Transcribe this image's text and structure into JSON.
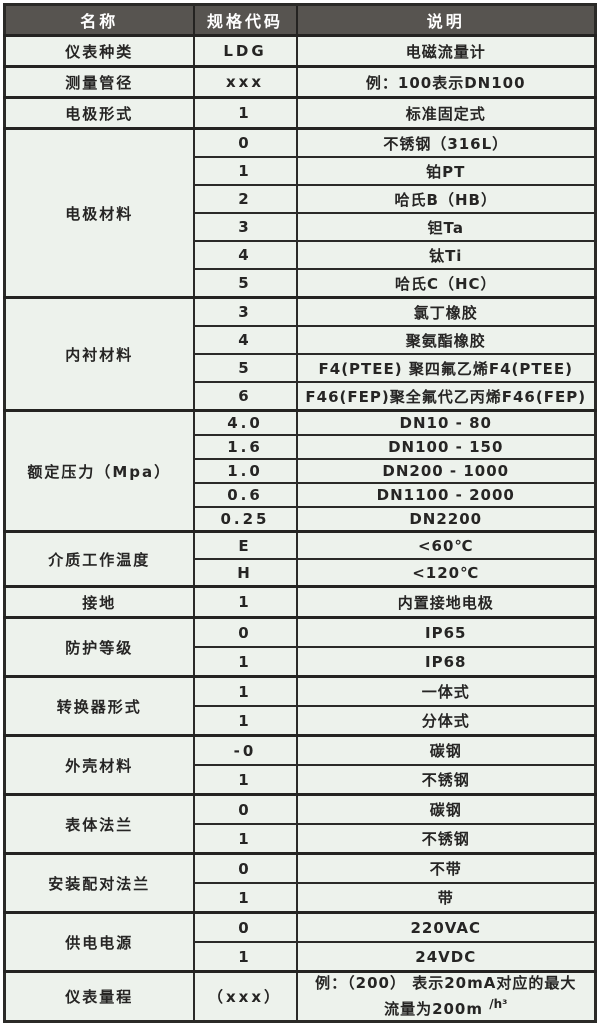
{
  "table": {
    "header": {
      "columns": [
        "名称",
        "规格代码",
        "说明"
      ],
      "bg_color": "#575450",
      "text_color": "#ffffff"
    },
    "colors": {
      "body_bg": "#edf2ec",
      "border": "#2b2a28",
      "text": "#262524"
    },
    "groups": [
      {
        "name": "仪表种类",
        "rows": [
          {
            "code": "LDG",
            "desc": "电磁流量计"
          }
        ]
      },
      {
        "name": "测量管径",
        "rows": [
          {
            "code": "xxx",
            "desc": "例：100表示DN100"
          }
        ]
      },
      {
        "name": "电极形式",
        "rows": [
          {
            "code": "1",
            "desc": "标准固定式"
          }
        ]
      },
      {
        "name": "电极材料",
        "rows": [
          {
            "code": "0",
            "desc": "不锈钢（316L）"
          },
          {
            "code": "1",
            "desc": "铂PT"
          },
          {
            "code": "2",
            "desc": "哈氏B（HB）"
          },
          {
            "code": "3",
            "desc": "钽Ta"
          },
          {
            "code": "4",
            "desc": "钛Ti"
          },
          {
            "code": "5",
            "desc": "哈氏C（HC）"
          }
        ]
      },
      {
        "name": "内衬材料",
        "rows": [
          {
            "code": "3",
            "desc": "氯丁橡胶"
          },
          {
            "code": "4",
            "desc": "聚氨酯橡胶"
          },
          {
            "code": "5",
            "desc": "F4(PTEE) 聚四氟乙烯F4(PTEE)"
          },
          {
            "code": "6",
            "desc": "F46(FEP)聚全氟代乙丙烯F46(FEP)"
          }
        ]
      },
      {
        "name": "额定压力（Mpa）",
        "rows": [
          {
            "code": "4.0",
            "desc": "DN10 - 80"
          },
          {
            "code": "1.6",
            "desc": "DN100 - 150"
          },
          {
            "code": "1.0",
            "desc": "DN200 - 1000"
          },
          {
            "code": "0.6",
            "desc": "DN1100 - 2000"
          },
          {
            "code": "0.25",
            "desc": "DN2200"
          }
        ]
      },
      {
        "name": "介质工作温度",
        "rows": [
          {
            "code": "E",
            "desc": "<60℃"
          },
          {
            "code": "H",
            "desc": "<120℃"
          }
        ]
      },
      {
        "name": "接地",
        "rows": [
          {
            "code": "1",
            "desc": "内置接地电极"
          }
        ]
      },
      {
        "name": "防护等级",
        "rows": [
          {
            "code": "0",
            "desc": "IP65"
          },
          {
            "code": "1",
            "desc": "IP68"
          }
        ]
      },
      {
        "name": "转换器形式",
        "rows": [
          {
            "code": "1",
            "desc": "一体式"
          },
          {
            "code": "1",
            "desc": "分体式"
          }
        ]
      },
      {
        "name": "外壳材料",
        "rows": [
          {
            "code": "-0",
            "desc": "碳钢"
          },
          {
            "code": "1",
            "desc": "不锈钢"
          }
        ]
      },
      {
        "name": "表体法兰",
        "rows": [
          {
            "code": "0",
            "desc": "碳钢"
          },
          {
            "code": "1",
            "desc": "不锈钢"
          }
        ]
      },
      {
        "name": "安装配对法兰",
        "rows": [
          {
            "code": "0",
            "desc": "不带"
          },
          {
            "code": "1",
            "desc": "带"
          }
        ]
      },
      {
        "name": "供电电源",
        "rows": [
          {
            "code": "0",
            "desc": "220VAC"
          },
          {
            "code": "1",
            "desc": "24VDC"
          }
        ]
      },
      {
        "name": "仪表量程",
        "rows": [
          {
            "code": "（xxx）",
            "desc": "例：（200） 表示20mA对应的最大",
            "desc_line2": "流量为200m",
            "desc_line2_sup": "/h³",
            "tall": true
          }
        ]
      }
    ]
  }
}
